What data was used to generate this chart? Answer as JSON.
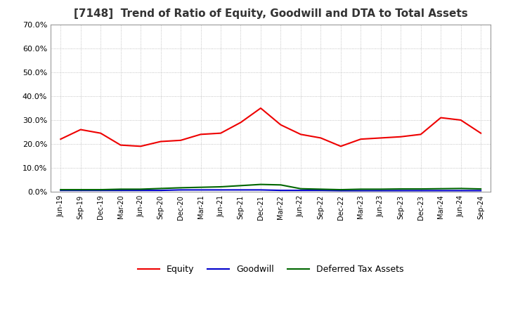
{
  "title": "[7148]  Trend of Ratio of Equity, Goodwill and DTA to Total Assets",
  "x_labels": [
    "Jun-19",
    "Sep-19",
    "Dec-19",
    "Mar-20",
    "Jun-20",
    "Sep-20",
    "Dec-20",
    "Mar-21",
    "Jun-21",
    "Sep-21",
    "Dec-21",
    "Mar-22",
    "Jun-22",
    "Sep-22",
    "Dec-22",
    "Mar-23",
    "Jun-23",
    "Sep-23",
    "Dec-23",
    "Mar-24",
    "Jun-24",
    "Sep-24"
  ],
  "equity": [
    0.22,
    0.26,
    0.245,
    0.195,
    0.19,
    0.21,
    0.215,
    0.24,
    0.245,
    0.29,
    0.35,
    0.28,
    0.24,
    0.225,
    0.19,
    0.22,
    0.225,
    0.23,
    0.24,
    0.31,
    0.3,
    0.245
  ],
  "goodwill": [
    0.005,
    0.005,
    0.005,
    0.005,
    0.005,
    0.005,
    0.007,
    0.007,
    0.007,
    0.007,
    0.007,
    0.005,
    0.005,
    0.005,
    0.004,
    0.004,
    0.004,
    0.004,
    0.004,
    0.004,
    0.004,
    0.004
  ],
  "dta": [
    0.008,
    0.008,
    0.008,
    0.01,
    0.01,
    0.013,
    0.016,
    0.018,
    0.02,
    0.025,
    0.03,
    0.028,
    0.012,
    0.01,
    0.008,
    0.01,
    0.01,
    0.011,
    0.011,
    0.012,
    0.013,
    0.011
  ],
  "equity_color": "#ee0000",
  "goodwill_color": "#0000cc",
  "dta_color": "#006600",
  "ylim": [
    0.0,
    0.7
  ],
  "yticks": [
    0.0,
    0.1,
    0.2,
    0.3,
    0.4,
    0.5,
    0.6,
    0.7
  ],
  "background_color": "#ffffff",
  "grid_color": "#aaaaaa",
  "legend_labels": [
    "Equity",
    "Goodwill",
    "Deferred Tax Assets"
  ],
  "title_fontsize": 11,
  "tick_labelsize": 8,
  "xtick_labelsize": 7
}
